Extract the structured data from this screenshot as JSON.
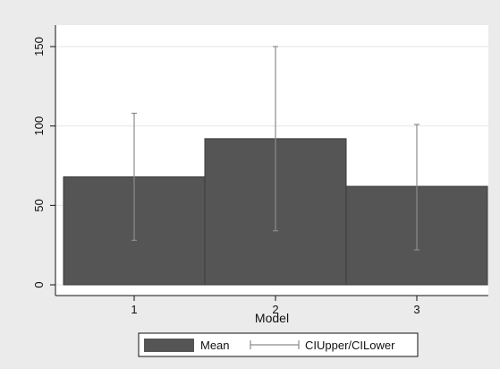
{
  "chart_data": {
    "type": "bar",
    "categories": [
      "1",
      "2",
      "3"
    ],
    "xlabel": "Model",
    "ylabel": "",
    "ylim": [
      0,
      160
    ],
    "yticks": [
      0,
      50,
      100,
      150
    ],
    "grid": true,
    "series": [
      {
        "name": "Mean",
        "type": "bar",
        "values": [
          68,
          92,
          62
        ]
      },
      {
        "name": "CIUpper/CILower",
        "type": "errorbar",
        "upper": [
          108,
          150,
          101
        ],
        "lower": [
          28,
          34,
          22
        ]
      }
    ],
    "legend": {
      "position": "bottom",
      "entries": [
        "Mean",
        "CIUpper/CILower"
      ]
    },
    "colors": {
      "bar": "#555555",
      "errorbar": "#8c8c8c",
      "background": "#ebebeb",
      "plot_bg": "#ffffff",
      "grid": "#e6e6e6"
    }
  }
}
